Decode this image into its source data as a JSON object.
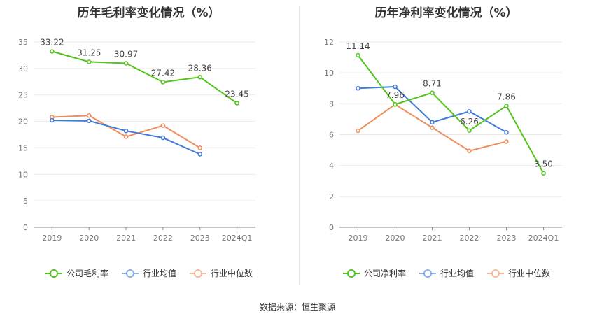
{
  "chart_data": [
    {
      "type": "line",
      "title": "历年毛利率变化情况（%）",
      "categories": [
        "2019",
        "2020",
        "2021",
        "2022",
        "2023",
        "2024Q1"
      ],
      "ylim": [
        0,
        35
      ],
      "yticks": [
        0,
        5,
        10,
        15,
        20,
        25,
        30,
        35
      ],
      "grid": true,
      "legend_position": "bottom",
      "series": [
        {
          "name": "公司毛利率",
          "values": [
            33.22,
            31.25,
            30.97,
            27.42,
            28.36,
            23.45
          ],
          "color": "#52c41a",
          "labeled": true,
          "labels": [
            "33.22",
            "31.25",
            "30.97",
            "27.42",
            "28.36",
            "23.45"
          ]
        },
        {
          "name": "行业均值",
          "values": [
            20.2,
            20.1,
            18.2,
            16.9,
            13.8,
            null
          ],
          "color": "#3f7bd9",
          "labeled": false
        },
        {
          "name": "行业中位数",
          "values": [
            20.8,
            21.1,
            17.1,
            19.2,
            15.0,
            null
          ],
          "color": "#f08c5c",
          "labeled": false
        }
      ]
    },
    {
      "type": "line",
      "title": "历年净利率变化情况（%）",
      "categories": [
        "2019",
        "2020",
        "2021",
        "2022",
        "2023",
        "2024Q1"
      ],
      "ylim": [
        0,
        12
      ],
      "yticks": [
        0,
        2,
        4,
        6,
        8,
        10,
        12
      ],
      "grid": true,
      "legend_position": "bottom",
      "series": [
        {
          "name": "公司净利率",
          "values": [
            11.14,
            7.96,
            8.71,
            6.26,
            7.86,
            3.5
          ],
          "color": "#52c41a",
          "labeled": true,
          "labels": [
            "11.14",
            "7.96",
            "8.71",
            "6.26",
            "7.86",
            "3.50"
          ]
        },
        {
          "name": "行业均值",
          "values": [
            9.0,
            9.1,
            6.8,
            7.5,
            6.15,
            null
          ],
          "color": "#3f7bd9",
          "labeled": false
        },
        {
          "name": "行业中位数",
          "values": [
            6.25,
            7.95,
            6.45,
            4.95,
            5.55,
            null
          ],
          "color": "#f08c5c",
          "labeled": false
        }
      ]
    }
  ],
  "source": "数据来源：恒生聚源"
}
